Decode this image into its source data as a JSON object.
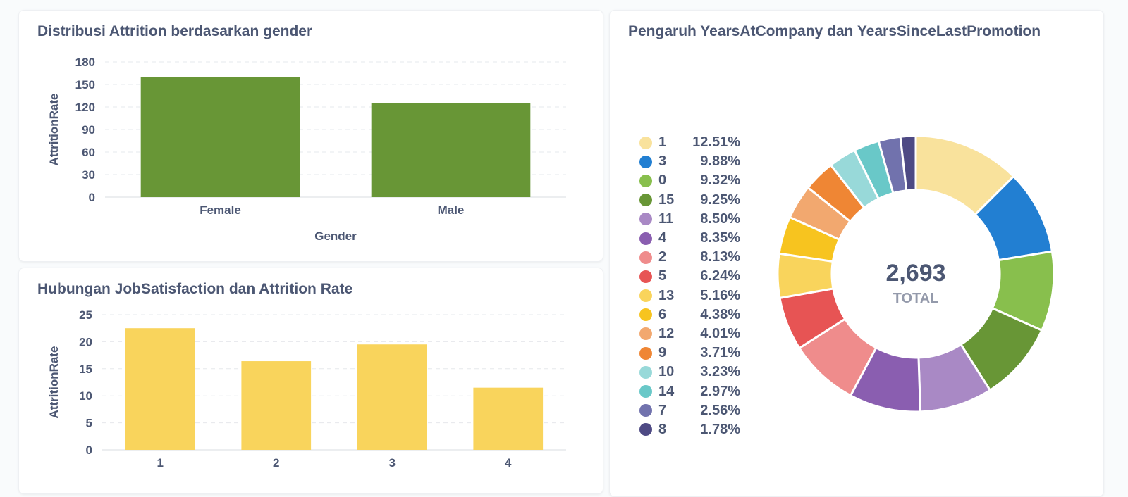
{
  "chart_data": [
    {
      "type": "bar",
      "title": "Distribusi Attrition berdasarkan gender",
      "xlabel": "Gender",
      "ylabel": "AttritionRate",
      "categories": [
        "Female",
        "Male"
      ],
      "values": [
        160,
        125
      ],
      "ylim": [
        0,
        180
      ],
      "yticks": [
        0,
        30,
        60,
        90,
        120,
        150,
        180
      ],
      "grid": true,
      "color": "#689636"
    },
    {
      "type": "bar",
      "title": "Hubungan JobSatisfaction dan Attrition Rate",
      "xlabel": "",
      "ylabel": "AttritionRate",
      "categories": [
        "1",
        "2",
        "3",
        "4"
      ],
      "values": [
        22.5,
        16.4,
        19.5,
        11.5
      ],
      "ylim": [
        0,
        25
      ],
      "yticks": [
        0,
        5,
        10,
        15,
        20,
        25
      ],
      "grid": true,
      "color": "#f9d45c"
    },
    {
      "type": "pie",
      "style": "donut",
      "title": "Pengaruh YearsAtCompany dan YearsSinceLastPromotion",
      "total_value": "2,693",
      "total_label": "TOTAL",
      "legend_position": "left",
      "slices": [
        {
          "name": "1",
          "percent": 12.51,
          "label": "12.51%",
          "color": "#f9e29c"
        },
        {
          "name": "3",
          "percent": 9.88,
          "label": "9.88%",
          "color": "#227fd2"
        },
        {
          "name": "0",
          "percent": 9.32,
          "label": "9.32%",
          "color": "#88bf4d"
        },
        {
          "name": "15",
          "percent": 9.25,
          "label": "9.25%",
          "color": "#689636"
        },
        {
          "name": "11",
          "percent": 8.5,
          "label": "8.50%",
          "color": "#a989c5"
        },
        {
          "name": "4",
          "percent": 8.35,
          "label": "8.35%",
          "color": "#8a5eb0"
        },
        {
          "name": "2",
          "percent": 8.13,
          "label": "8.13%",
          "color": "#ef8c8c"
        },
        {
          "name": "5",
          "percent": 6.24,
          "label": "6.24%",
          "color": "#e75454"
        },
        {
          "name": "13",
          "percent": 5.16,
          "label": "5.16%",
          "color": "#f9d45c"
        },
        {
          "name": "6",
          "percent": 4.38,
          "label": "4.38%",
          "color": "#f7c41f"
        },
        {
          "name": "12",
          "percent": 4.01,
          "label": "4.01%",
          "color": "#f2a86f"
        },
        {
          "name": "9",
          "percent": 3.71,
          "label": "3.71%",
          "color": "#ef8634"
        },
        {
          "name": "10",
          "percent": 3.23,
          "label": "3.23%",
          "color": "#98d9d9"
        },
        {
          "name": "14",
          "percent": 2.97,
          "label": "2.97%",
          "color": "#69c8c8"
        },
        {
          "name": "7",
          "percent": 2.56,
          "label": "2.56%",
          "color": "#7172ad"
        },
        {
          "name": "8",
          "percent": 1.78,
          "label": "1.78%",
          "color": "#4e4a84"
        }
      ]
    }
  ]
}
